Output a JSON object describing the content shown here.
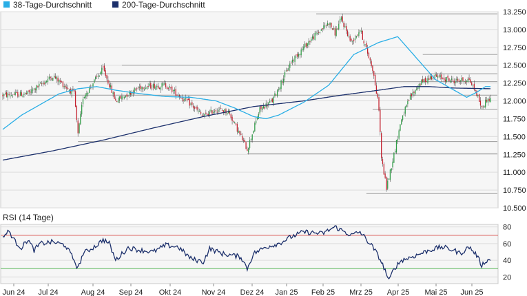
{
  "chart_data": [
    {
      "type": "candlestick",
      "legend": [
        {
          "name": "38-Tage-Durchschnitt",
          "color": "#29aee6"
        },
        {
          "name": "200-Tage-Durchschnitt",
          "color": "#1b2f6b"
        }
      ],
      "ylim": [
        10.5,
        13.25
      ],
      "yticks": [
        "13.250",
        "13.000",
        "12.750",
        "12.500",
        "12.250",
        "12.000",
        "11.750",
        "11.500",
        "11.250",
        "11.000",
        "10.750",
        "10.500"
      ],
      "ma38_anchors": [
        [
          0,
          11.6
        ],
        [
          15,
          11.8
        ],
        [
          30,
          11.95
        ],
        [
          45,
          12.1
        ],
        [
          60,
          12.17
        ],
        [
          75,
          12.2
        ],
        [
          90,
          12.15
        ],
        [
          110,
          12.1
        ],
        [
          130,
          12.06
        ],
        [
          150,
          12.05
        ],
        [
          170,
          12.0
        ],
        [
          185,
          11.9
        ],
        [
          200,
          11.78
        ],
        [
          210,
          11.75
        ],
        [
          220,
          11.8
        ],
        [
          240,
          11.98
        ],
        [
          260,
          12.22
        ],
        [
          280,
          12.65
        ],
        [
          300,
          12.82
        ],
        [
          315,
          12.9
        ],
        [
          330,
          12.6
        ],
        [
          345,
          12.3
        ],
        [
          360,
          12.15
        ],
        [
          370,
          12.05
        ],
        [
          378,
          12.12
        ],
        [
          385,
          12.2
        ],
        [
          390,
          12.2
        ]
      ],
      "ma200_anchors": [
        [
          0,
          11.17
        ],
        [
          40,
          11.3
        ],
        [
          80,
          11.45
        ],
        [
          120,
          11.62
        ],
        [
          160,
          11.78
        ],
        [
          200,
          11.92
        ],
        [
          240,
          12.0
        ],
        [
          270,
          12.08
        ],
        [
          300,
          12.15
        ],
        [
          320,
          12.2
        ],
        [
          340,
          12.2
        ],
        [
          360,
          12.18
        ],
        [
          390,
          12.17
        ]
      ],
      "price_anchors": [
        [
          0,
          12.08
        ],
        [
          20,
          12.1
        ],
        [
          40,
          12.35
        ],
        [
          57,
          12.1
        ],
        [
          60,
          11.52
        ],
        [
          64,
          12.05
        ],
        [
          80,
          12.45
        ],
        [
          90,
          12.0
        ],
        [
          110,
          12.2
        ],
        [
          130,
          12.22
        ],
        [
          150,
          11.95
        ],
        [
          160,
          11.78
        ],
        [
          170,
          11.88
        ],
        [
          180,
          11.85
        ],
        [
          195,
          11.32
        ],
        [
          205,
          11.88
        ],
        [
          215,
          12.0
        ],
        [
          230,
          12.55
        ],
        [
          245,
          12.85
        ],
        [
          260,
          13.1
        ],
        [
          265,
          12.95
        ],
        [
          270,
          13.15
        ],
        [
          278,
          12.82
        ],
        [
          285,
          13.0
        ],
        [
          295,
          12.45
        ],
        [
          300,
          11.9
        ],
        [
          302,
          11.2
        ],
        [
          306,
          10.78
        ],
        [
          312,
          11.25
        ],
        [
          318,
          11.75
        ],
        [
          325,
          12.05
        ],
        [
          333,
          12.25
        ],
        [
          343,
          12.35
        ],
        [
          360,
          12.28
        ],
        [
          372,
          12.3
        ],
        [
          378,
          12.1
        ],
        [
          382,
          11.9
        ],
        [
          386,
          12.02
        ]
      ],
      "resistance_lines": [
        {
          "value": 13.22,
          "from": 250,
          "to": 390
        },
        {
          "value": 12.65,
          "from": 335,
          "to": 390
        },
        {
          "value": 12.5,
          "from": 95,
          "to": 390
        },
        {
          "value": 12.38,
          "from": 75,
          "to": 390
        },
        {
          "value": 12.27,
          "from": 60,
          "to": 390
        },
        {
          "value": 12.08,
          "from": 20,
          "to": 390
        },
        {
          "value": 11.88,
          "from": 295,
          "to": 390
        },
        {
          "value": 11.43,
          "from": 60,
          "to": 390
        },
        {
          "value": 11.26,
          "from": 195,
          "to": 390
        },
        {
          "value": 10.7,
          "from": 290,
          "to": 390
        }
      ]
    },
    {
      "type": "line",
      "title": "RSI (14 Tage)",
      "ylim": [
        12,
        83
      ],
      "yticks": [
        "80",
        "60",
        "40",
        "20"
      ],
      "reference_lines": [
        70,
        30
      ],
      "anchors": [
        [
          0,
          68
        ],
        [
          5,
          75
        ],
        [
          10,
          62
        ],
        [
          15,
          55
        ],
        [
          20,
          65
        ],
        [
          25,
          52
        ],
        [
          30,
          60
        ],
        [
          40,
          62
        ],
        [
          50,
          58
        ],
        [
          57,
          40
        ],
        [
          60,
          30
        ],
        [
          64,
          48
        ],
        [
          75,
          58
        ],
        [
          80,
          65
        ],
        [
          85,
          60
        ],
        [
          90,
          40
        ],
        [
          100,
          55
        ],
        [
          110,
          52
        ],
        [
          120,
          50
        ],
        [
          130,
          58
        ],
        [
          140,
          56
        ],
        [
          150,
          42
        ],
        [
          160,
          38
        ],
        [
          165,
          54
        ],
        [
          175,
          48
        ],
        [
          190,
          44
        ],
        [
          195,
          30
        ],
        [
          200,
          48
        ],
        [
          210,
          56
        ],
        [
          220,
          60
        ],
        [
          230,
          68
        ],
        [
          240,
          74
        ],
        [
          255,
          72
        ],
        [
          265,
          80
        ],
        [
          278,
          70
        ],
        [
          285,
          74
        ],
        [
          295,
          56
        ],
        [
          300,
          44
        ],
        [
          305,
          28
        ],
        [
          308,
          15
        ],
        [
          312,
          30
        ],
        [
          318,
          40
        ],
        [
          330,
          46
        ],
        [
          340,
          52
        ],
        [
          350,
          56
        ],
        [
          360,
          52
        ],
        [
          365,
          48
        ],
        [
          372,
          56
        ],
        [
          378,
          46
        ],
        [
          382,
          34
        ],
        [
          386,
          40
        ]
      ],
      "x_tick_labels": [
        "Jun 24",
        "Jul 24",
        "Aug 24",
        "Sep 24",
        "Okt 24",
        "Nov 24",
        "Dez 24",
        "Jan 25",
        "Feb 25",
        "Mrz 25",
        "Apr 25",
        "Mai 25",
        "Jun 25"
      ]
    }
  ]
}
